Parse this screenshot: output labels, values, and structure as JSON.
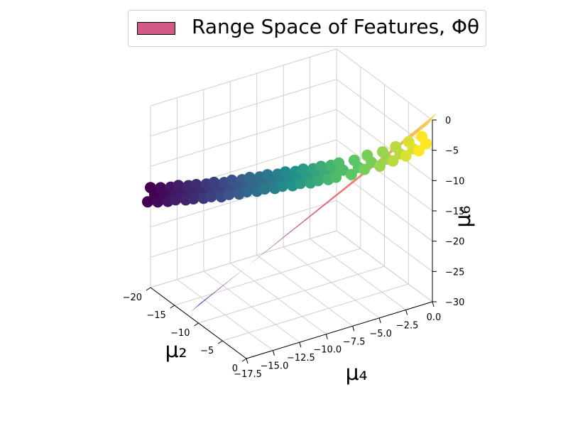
{
  "chart_data": {
    "type": "scatter",
    "projection": "3d",
    "title": "",
    "legend": {
      "label": "Range Space of Features, Φθ",
      "swatch_color": "#d05a85",
      "placement": "top"
    },
    "axes": {
      "x": {
        "label": "μ₂",
        "ticks": [
          "−20",
          "−15",
          "−10",
          "−5",
          "0"
        ],
        "range": [
          -20,
          0
        ]
      },
      "y": {
        "label": "μ₄",
        "ticks": [
          "−17.5",
          "−15.0",
          "−12.5",
          "−10.0",
          "−7.5",
          "−5.0",
          "−2.5",
          "0.0"
        ],
        "range": [
          -17.5,
          0
        ]
      },
      "z": {
        "label": "μ₆",
        "ticks": [
          "0",
          "−5",
          "−10",
          "−15",
          "−20",
          "−25",
          "−30"
        ],
        "range": [
          -30,
          0
        ]
      }
    },
    "grid": true,
    "colormap": "viridis",
    "surface": {
      "description": "plane spanned by features",
      "colormap": "plasma"
    },
    "series": [
      {
        "points": [
          {
            "x": -20,
            "y": -17.5,
            "z": -13.5
          },
          {
            "x": -19,
            "y": -17.0,
            "z": -13.2
          },
          {
            "x": -18,
            "y": -16.5,
            "z": -12.8
          },
          {
            "x": -17.5,
            "y": -16.0,
            "z": -12.5
          },
          {
            "x": -16.5,
            "y": -15.5,
            "z": -12.2
          },
          {
            "x": -16,
            "y": -15.0,
            "z": -12.0
          },
          {
            "x": -15,
            "y": -14.5,
            "z": -11.6
          },
          {
            "x": -14.5,
            "y": -14.0,
            "z": -11.3
          },
          {
            "x": -13.5,
            "y": -13.5,
            "z": -11.0
          },
          {
            "x": -13,
            "y": -13.0,
            "z": -10.6
          },
          {
            "x": -12,
            "y": -12.5,
            "z": -10.2
          },
          {
            "x": -11.5,
            "y": -12.0,
            "z": -9.8
          },
          {
            "x": -10.5,
            "y": -11.5,
            "z": -9.4
          },
          {
            "x": -10,
            "y": -11.0,
            "z": -9.0
          },
          {
            "x": -9,
            "y": -10.5,
            "z": -8.6
          },
          {
            "x": -8.5,
            "y": -10.0,
            "z": -8.2
          },
          {
            "x": -7.5,
            "y": -9.5,
            "z": -7.8
          },
          {
            "x": -7,
            "y": -9.0,
            "z": -7.4
          },
          {
            "x": -6,
            "y": -8.5,
            "z": -7.0
          },
          {
            "x": -5.5,
            "y": -8.0,
            "z": -6.6
          },
          {
            "x": -4.5,
            "y": -7.5,
            "z": -6.1
          },
          {
            "x": -4,
            "y": -7.0,
            "z": -5.7
          },
          {
            "x": -3,
            "y": -6.0,
            "z": -5.2
          },
          {
            "x": -2.5,
            "y": -5.0,
            "z": -4.6
          },
          {
            "x": -1.5,
            "y": -4.0,
            "z": -4.0
          },
          {
            "x": -1,
            "y": -3.0,
            "z": -3.4
          },
          {
            "x": -0.5,
            "y": -2.0,
            "z": -2.8
          },
          {
            "x": 0,
            "y": -1.0,
            "z": -2.2
          }
        ]
      }
    ]
  }
}
